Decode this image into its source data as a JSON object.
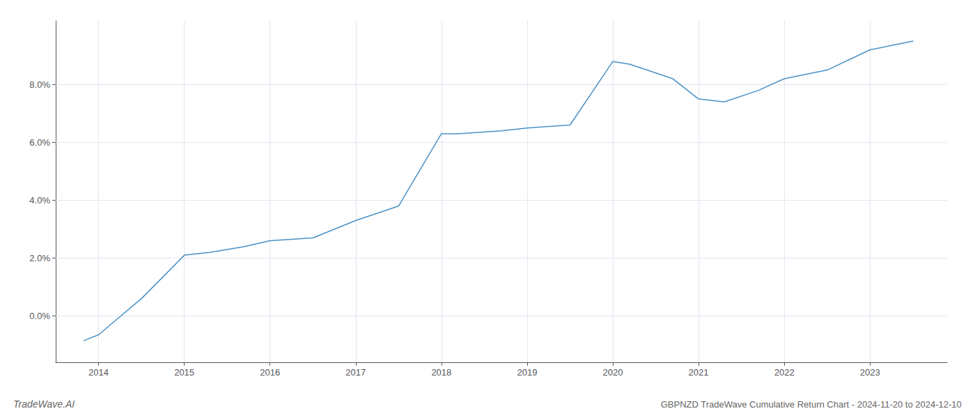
{
  "chart_data": {
    "type": "line",
    "title": "GBPNZD TradeWave Cumulative Return Chart - 2024-11-20 to 2024-12-10",
    "annotations": [
      "TradeWave.AI"
    ],
    "x": [
      2013.83,
      2014.0,
      2014.5,
      2015.0,
      2015.3,
      2015.7,
      2016.0,
      2016.5,
      2017.0,
      2017.5,
      2018.0,
      2018.2,
      2018.7,
      2019.0,
      2019.5,
      2020.0,
      2020.2,
      2020.7,
      2021.0,
      2021.3,
      2021.7,
      2022.0,
      2022.5,
      2023.0,
      2023.5
    ],
    "values": [
      -0.0085,
      -0.0065,
      0.006,
      0.021,
      0.022,
      0.024,
      0.026,
      0.027,
      0.033,
      0.038,
      0.063,
      0.063,
      0.064,
      0.065,
      0.066,
      0.088,
      0.087,
      0.082,
      0.075,
      0.074,
      0.078,
      0.082,
      0.085,
      0.092,
      0.095
    ],
    "color": "#4a90c4",
    "xlim": [
      2013.5,
      2023.9
    ],
    "ylim": [
      -0.016,
      0.102
    ],
    "xticks": [
      2014,
      2015,
      2016,
      2017,
      2018,
      2019,
      2020,
      2021,
      2022,
      2023
    ],
    "yticks": [
      {
        "value": 0.0,
        "label": "0.0%"
      },
      {
        "value": 0.02,
        "label": "2.0%"
      },
      {
        "value": 0.04,
        "label": "4.0%"
      },
      {
        "value": 0.06,
        "label": "6.0%"
      },
      {
        "value": 0.08,
        "label": "8.0%"
      }
    ],
    "grid": true
  }
}
